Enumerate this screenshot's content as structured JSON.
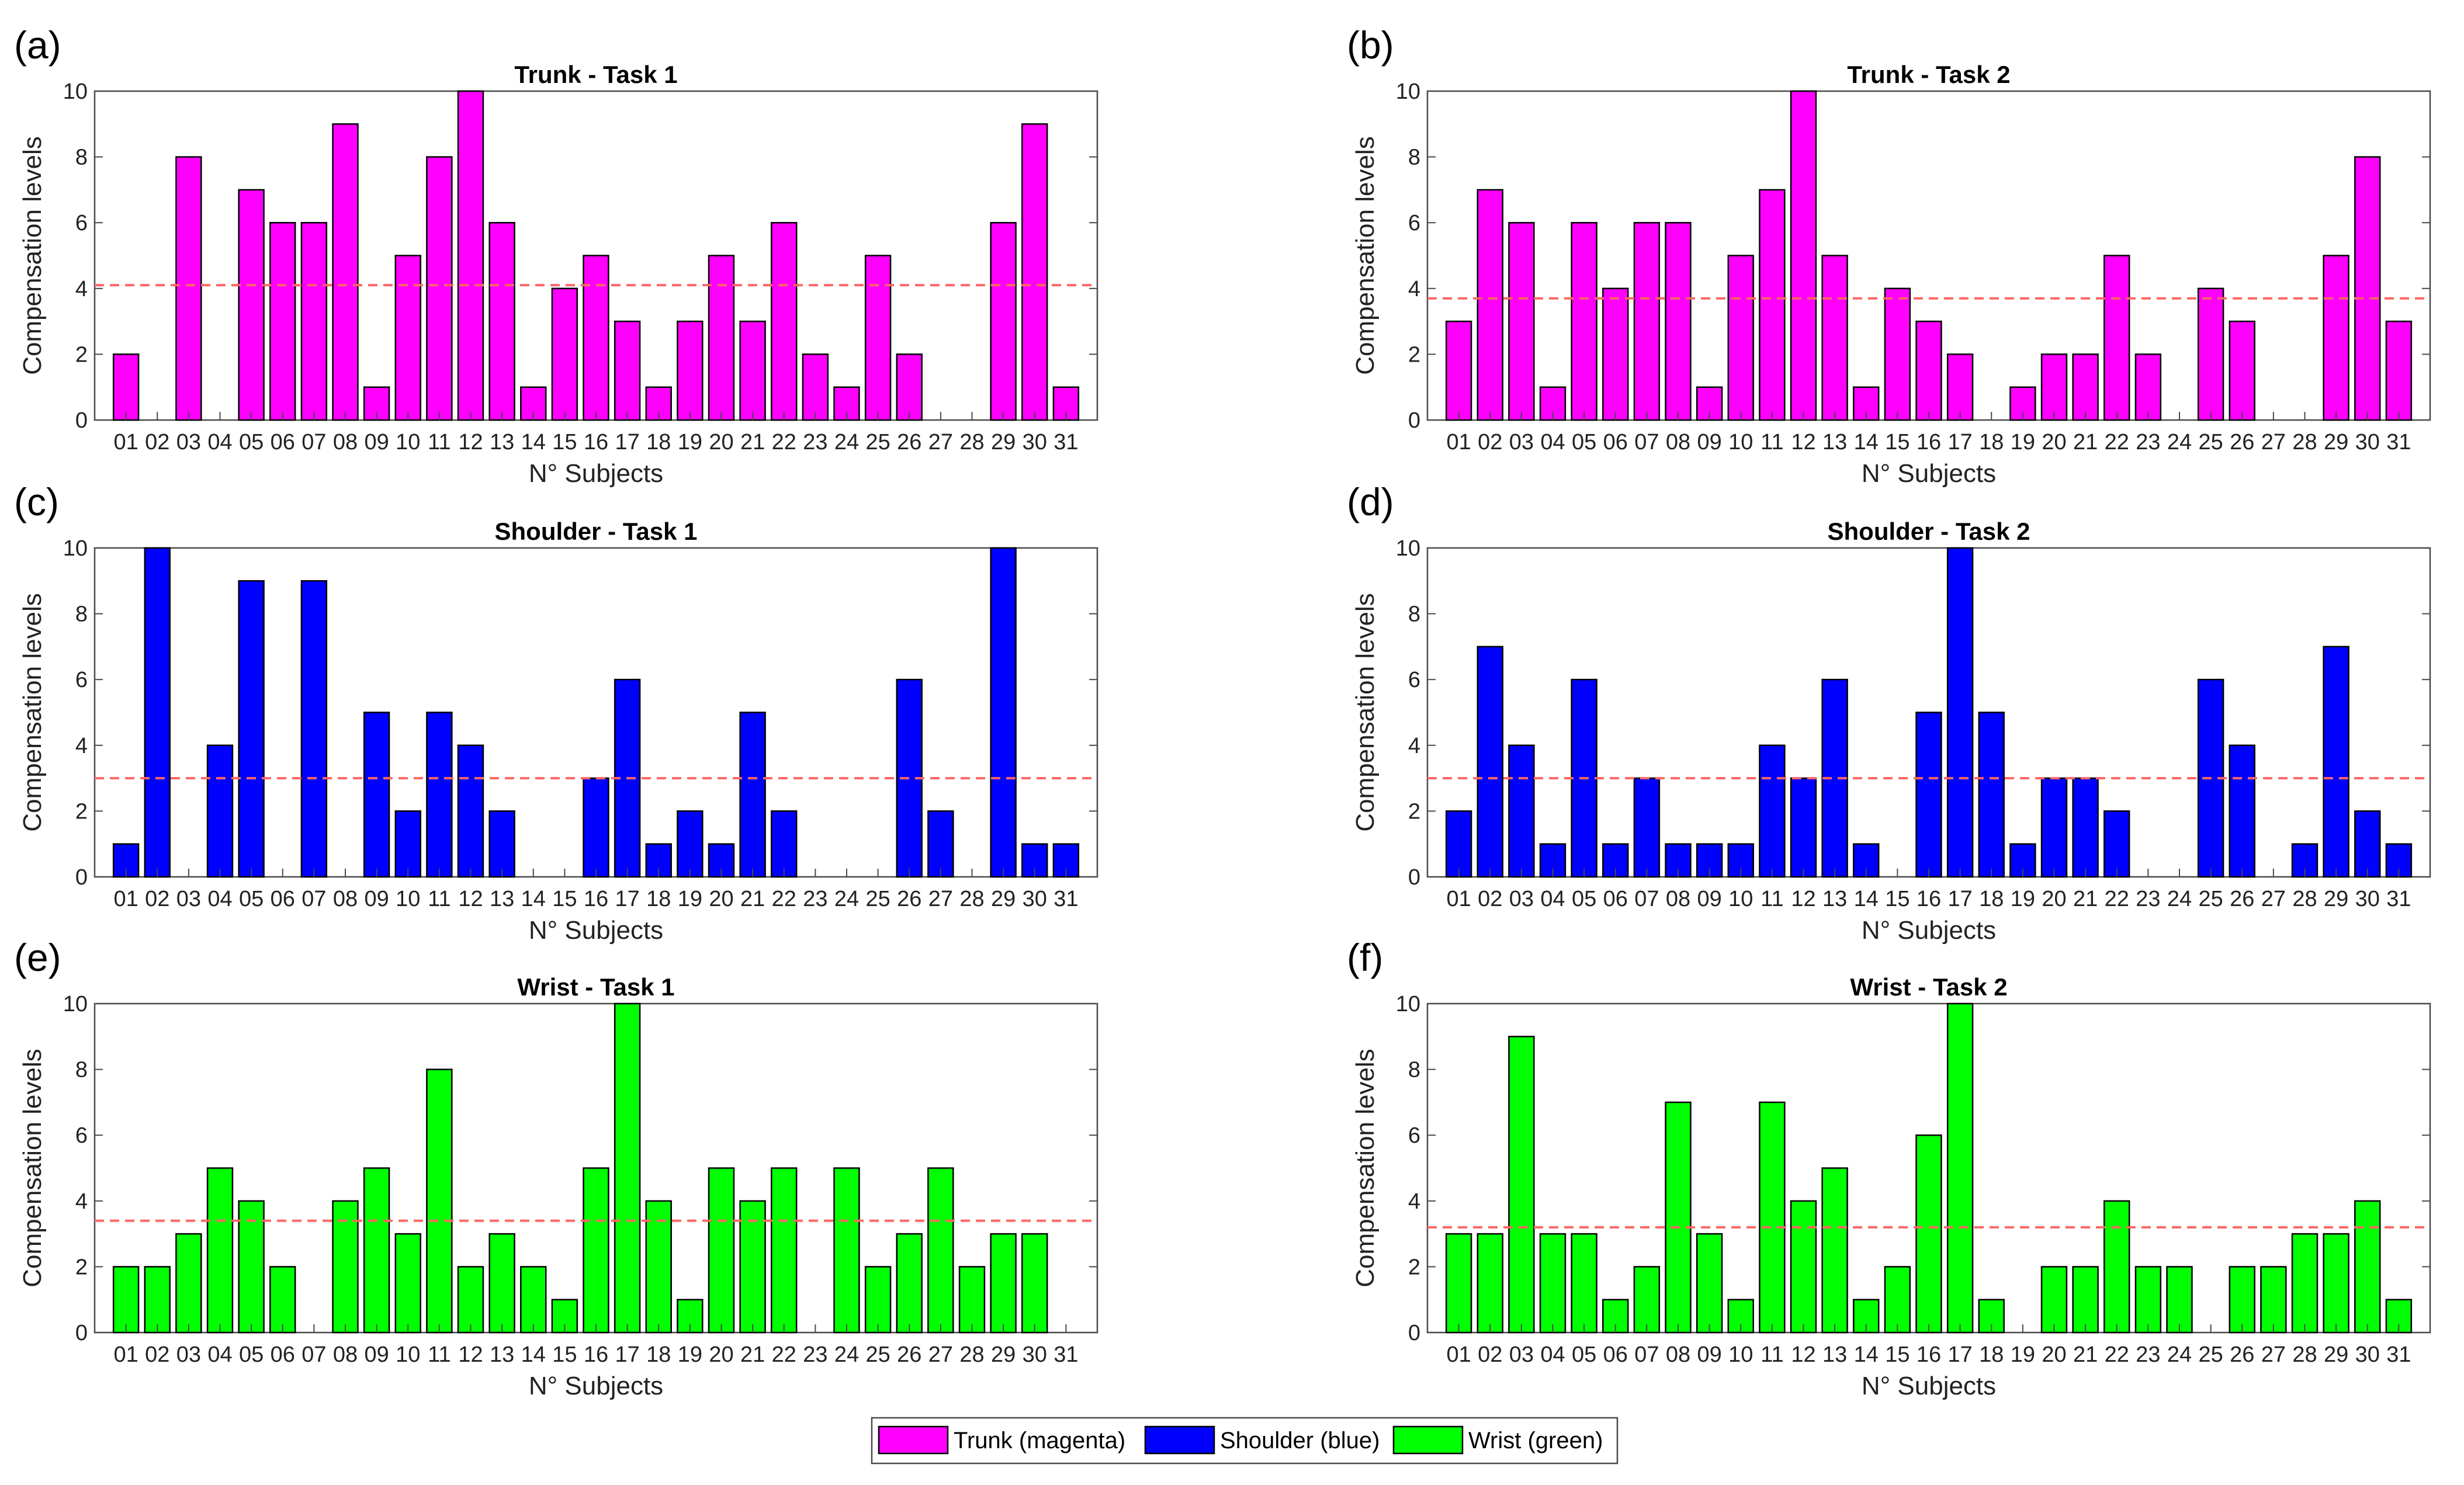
{
  "colors": {
    "trunk": "#ff00ff",
    "shoulder": "#0000ff",
    "wrist": "#00ff00",
    "mean_line": "#ff6666",
    "axis": "#4a4a4a"
  },
  "legend": {
    "items": [
      {
        "label": "Trunk (magenta)",
        "color": "#ff00ff"
      },
      {
        "label": "Shoulder (blue)",
        "color": "#0000ff"
      },
      {
        "label": "Wrist (green)",
        "color": "#00ff00"
      }
    ]
  },
  "chart_data": [
    {
      "panel": "(a)",
      "type": "bar",
      "title": "Trunk - Task 1",
      "xlabel": "N° Subjects",
      "ylabel": "Compensation levels",
      "ylim": [
        0,
        10
      ],
      "yticks": [
        "0",
        "2",
        "4",
        "6",
        "8",
        "10"
      ],
      "color": "#ff00ff",
      "categories": [
        "01",
        "02",
        "03",
        "04",
        "05",
        "06",
        "07",
        "08",
        "09",
        "10",
        "11",
        "12",
        "13",
        "14",
        "15",
        "16",
        "17",
        "18",
        "19",
        "20",
        "21",
        "22",
        "23",
        "24",
        "25",
        "26",
        "27",
        "28",
        "29",
        "30",
        "31"
      ],
      "values": [
        2,
        0,
        8,
        0,
        7,
        6,
        6,
        9,
        1,
        5,
        8,
        10,
        6,
        1,
        4,
        5,
        3,
        1,
        3,
        5,
        3,
        6,
        2,
        1,
        5,
        2,
        0,
        0,
        6,
        9,
        1
      ],
      "mean": 4.1
    },
    {
      "panel": "(b)",
      "type": "bar",
      "title": "Trunk - Task 2",
      "xlabel": "N° Subjects",
      "ylabel": "Compensation levels",
      "ylim": [
        0,
        10
      ],
      "yticks": [
        "0",
        "2",
        "4",
        "6",
        "8",
        "10"
      ],
      "color": "#ff00ff",
      "categories": [
        "01",
        "02",
        "03",
        "04",
        "05",
        "06",
        "07",
        "08",
        "09",
        "10",
        "11",
        "12",
        "13",
        "14",
        "15",
        "16",
        "17",
        "18",
        "19",
        "20",
        "21",
        "22",
        "23",
        "24",
        "25",
        "26",
        "27",
        "28",
        "29",
        "30",
        "31"
      ],
      "values": [
        3,
        7,
        6,
        1,
        6,
        4,
        6,
        6,
        1,
        5,
        7,
        10,
        5,
        1,
        4,
        3,
        2,
        0,
        1,
        2,
        2,
        5,
        2,
        0,
        4,
        3,
        0,
        0,
        5,
        8,
        3
      ],
      "mean": 3.7
    },
    {
      "panel": "(c)",
      "type": "bar",
      "title": "Shoulder - Task 1",
      "xlabel": "N° Subjects",
      "ylabel": "Compensation levels",
      "ylim": [
        0,
        10
      ],
      "yticks": [
        "0",
        "2",
        "4",
        "6",
        "8",
        "10"
      ],
      "color": "#0000ff",
      "categories": [
        "01",
        "02",
        "03",
        "04",
        "05",
        "06",
        "07",
        "08",
        "09",
        "10",
        "11",
        "12",
        "13",
        "14",
        "15",
        "16",
        "17",
        "18",
        "19",
        "20",
        "21",
        "22",
        "23",
        "24",
        "25",
        "26",
        "27",
        "28",
        "29",
        "30",
        "31"
      ],
      "values": [
        1,
        10,
        0,
        4,
        9,
        0,
        9,
        0,
        5,
        2,
        5,
        4,
        2,
        0,
        0,
        3,
        6,
        1,
        2,
        1,
        5,
        2,
        0,
        0,
        0,
        6,
        2,
        0,
        10,
        1,
        1
      ],
      "mean": 3.0
    },
    {
      "panel": "(d)",
      "type": "bar",
      "title": "Shoulder - Task 2",
      "xlabel": "N° Subjects",
      "ylabel": "Compensation levels",
      "ylim": [
        0,
        10
      ],
      "yticks": [
        "0",
        "2",
        "4",
        "6",
        "8",
        "10"
      ],
      "color": "#0000ff",
      "categories": [
        "01",
        "02",
        "03",
        "04",
        "05",
        "06",
        "07",
        "08",
        "09",
        "10",
        "11",
        "12",
        "13",
        "14",
        "15",
        "16",
        "17",
        "18",
        "19",
        "20",
        "21",
        "22",
        "23",
        "24",
        "25",
        "26",
        "27",
        "28",
        "29",
        "30",
        "31"
      ],
      "values": [
        2,
        7,
        4,
        1,
        6,
        1,
        3,
        1,
        1,
        1,
        4,
        3,
        6,
        1,
        0,
        5,
        10,
        5,
        1,
        3,
        3,
        2,
        0,
        0,
        6,
        4,
        0,
        1,
        7,
        2,
        1
      ],
      "mean": 3.0
    },
    {
      "panel": "(e)",
      "type": "bar",
      "title": "Wrist - Task 1",
      "xlabel": "N° Subjects",
      "ylabel": "Compensation levels",
      "ylim": [
        0,
        10
      ],
      "yticks": [
        "0",
        "2",
        "4",
        "6",
        "8",
        "10"
      ],
      "color": "#00ff00",
      "categories": [
        "01",
        "02",
        "03",
        "04",
        "05",
        "06",
        "07",
        "08",
        "09",
        "10",
        "11",
        "12",
        "13",
        "14",
        "15",
        "16",
        "17",
        "18",
        "19",
        "20",
        "21",
        "22",
        "23",
        "24",
        "25",
        "26",
        "27",
        "28",
        "29",
        "30",
        "31"
      ],
      "values": [
        2,
        2,
        3,
        5,
        4,
        2,
        0,
        4,
        5,
        3,
        8,
        2,
        3,
        2,
        1,
        5,
        10,
        4,
        1,
        5,
        4,
        5,
        0,
        5,
        2,
        3,
        5,
        2,
        3,
        3,
        0
      ],
      "mean": 3.4
    },
    {
      "panel": "(f)",
      "type": "bar",
      "title": "Wrist - Task 2",
      "xlabel": "N° Subjects",
      "ylabel": "Compensation levels",
      "ylim": [
        0,
        10
      ],
      "yticks": [
        "0",
        "2",
        "4",
        "6",
        "8",
        "10"
      ],
      "color": "#00ff00",
      "categories": [
        "01",
        "02",
        "03",
        "04",
        "05",
        "06",
        "07",
        "08",
        "09",
        "10",
        "11",
        "12",
        "13",
        "14",
        "15",
        "16",
        "17",
        "18",
        "19",
        "20",
        "21",
        "22",
        "23",
        "24",
        "25",
        "26",
        "27",
        "28",
        "29",
        "30",
        "31"
      ],
      "values": [
        3,
        3,
        9,
        3,
        3,
        1,
        2,
        7,
        3,
        1,
        7,
        4,
        5,
        1,
        2,
        6,
        10,
        1,
        0,
        2,
        2,
        4,
        2,
        2,
        0,
        2,
        2,
        3,
        3,
        4,
        1
      ],
      "mean": 3.2
    }
  ]
}
